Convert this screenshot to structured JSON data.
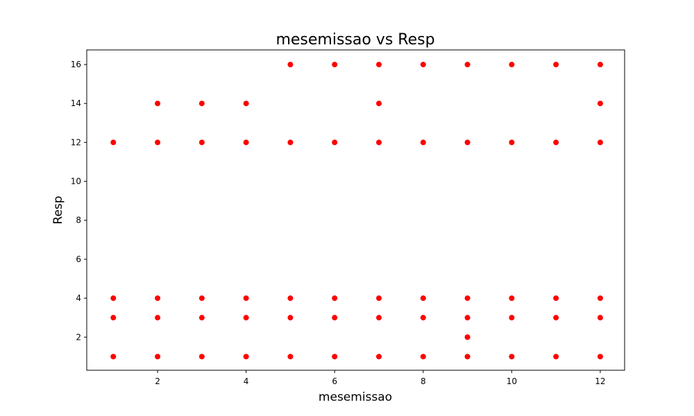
{
  "chart_data": {
    "type": "scatter",
    "title": "mesemissao vs Resp",
    "xlabel": "mesemissao",
    "ylabel": "Resp",
    "xlim": [
      0.4,
      12.55
    ],
    "ylim": [
      0.3,
      16.75
    ],
    "xticks": [
      2,
      4,
      6,
      8,
      10,
      12
    ],
    "yticks": [
      2,
      4,
      6,
      8,
      10,
      12,
      14,
      16
    ],
    "grid": false,
    "point_color": "#ff0000",
    "points": [
      [
        1,
        1
      ],
      [
        1,
        3
      ],
      [
        1,
        4
      ],
      [
        1,
        12
      ],
      [
        2,
        1
      ],
      [
        2,
        3
      ],
      [
        2,
        4
      ],
      [
        2,
        12
      ],
      [
        2,
        14
      ],
      [
        3,
        1
      ],
      [
        3,
        3
      ],
      [
        3,
        4
      ],
      [
        3,
        12
      ],
      [
        3,
        14
      ],
      [
        4,
        1
      ],
      [
        4,
        3
      ],
      [
        4,
        4
      ],
      [
        4,
        12
      ],
      [
        4,
        14
      ],
      [
        5,
        1
      ],
      [
        5,
        3
      ],
      [
        5,
        4
      ],
      [
        5,
        12
      ],
      [
        5,
        16
      ],
      [
        6,
        1
      ],
      [
        6,
        3
      ],
      [
        6,
        4
      ],
      [
        6,
        12
      ],
      [
        6,
        16
      ],
      [
        7,
        1
      ],
      [
        7,
        3
      ],
      [
        7,
        4
      ],
      [
        7,
        12
      ],
      [
        7,
        14
      ],
      [
        7,
        16
      ],
      [
        8,
        1
      ],
      [
        8,
        3
      ],
      [
        8,
        4
      ],
      [
        8,
        12
      ],
      [
        8,
        16
      ],
      [
        9,
        1
      ],
      [
        9,
        2
      ],
      [
        9,
        3
      ],
      [
        9,
        4
      ],
      [
        9,
        12
      ],
      [
        9,
        16
      ],
      [
        10,
        1
      ],
      [
        10,
        3
      ],
      [
        10,
        4
      ],
      [
        10,
        12
      ],
      [
        10,
        16
      ],
      [
        11,
        1
      ],
      [
        11,
        3
      ],
      [
        11,
        4
      ],
      [
        11,
        12
      ],
      [
        11,
        16
      ],
      [
        12,
        1
      ],
      [
        12,
        3
      ],
      [
        12,
        4
      ],
      [
        12,
        12
      ],
      [
        12,
        14
      ],
      [
        12,
        16
      ]
    ]
  }
}
